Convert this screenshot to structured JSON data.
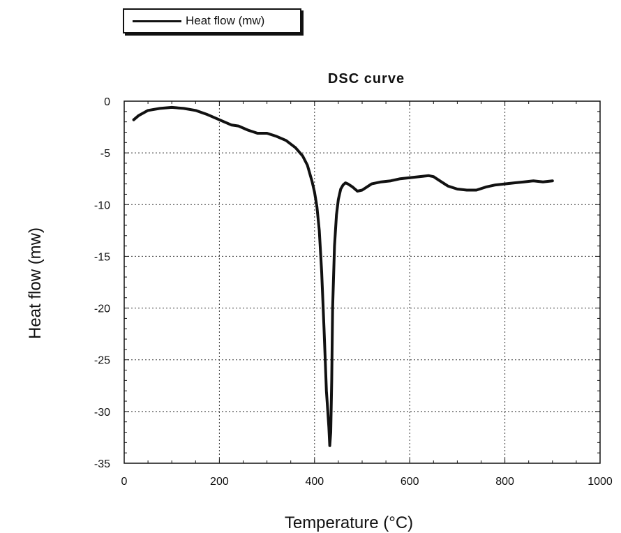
{
  "legend": {
    "label": "Heat flow (mw)"
  },
  "chart_data": {
    "type": "line",
    "title": "DSC curve",
    "xlabel": "Temperature (°C)",
    "ylabel": "Heat flow (mw)",
    "xlim": [
      0,
      1000
    ],
    "ylim": [
      -35,
      0
    ],
    "xticks": [
      0,
      200,
      400,
      600,
      800,
      1000
    ],
    "yticks": [
      0,
      -5,
      -10,
      -15,
      -20,
      -25,
      -30,
      -35
    ],
    "grid": true,
    "legend_position": "top-left",
    "series": [
      {
        "name": "Heat flow (mw)",
        "color": "#111111",
        "x": [
          20,
          30,
          50,
          75,
          100,
          125,
          150,
          175,
          200,
          225,
          240,
          260,
          280,
          300,
          320,
          340,
          360,
          375,
          385,
          395,
          400,
          405,
          410,
          415,
          420,
          425,
          430,
          432,
          434,
          436,
          438,
          442,
          446,
          450,
          455,
          460,
          465,
          470,
          480,
          490,
          500,
          510,
          520,
          540,
          560,
          580,
          600,
          620,
          640,
          650,
          660,
          680,
          700,
          720,
          740,
          760,
          780,
          800,
          820,
          840,
          860,
          880,
          900
        ],
        "y": [
          -1.8,
          -1.4,
          -0.9,
          -0.7,
          -0.6,
          -0.7,
          -0.9,
          -1.3,
          -1.8,
          -2.3,
          -2.4,
          -2.8,
          -3.1,
          -3.1,
          -3.4,
          -3.8,
          -4.5,
          -5.3,
          -6.2,
          -7.8,
          -8.8,
          -10.2,
          -12.5,
          -16.5,
          -22.0,
          -28.0,
          -31.5,
          -33.3,
          -32.0,
          -27.0,
          -20.0,
          -14.0,
          -11.0,
          -9.5,
          -8.5,
          -8.1,
          -7.9,
          -8.0,
          -8.3,
          -8.7,
          -8.6,
          -8.3,
          -8.0,
          -7.8,
          -7.7,
          -7.5,
          -7.4,
          -7.3,
          -7.2,
          -7.3,
          -7.6,
          -8.2,
          -8.5,
          -8.6,
          -8.6,
          -8.3,
          -8.1,
          -8.0,
          -7.9,
          -7.8,
          -7.7,
          -7.8,
          -7.7
        ]
      }
    ]
  }
}
